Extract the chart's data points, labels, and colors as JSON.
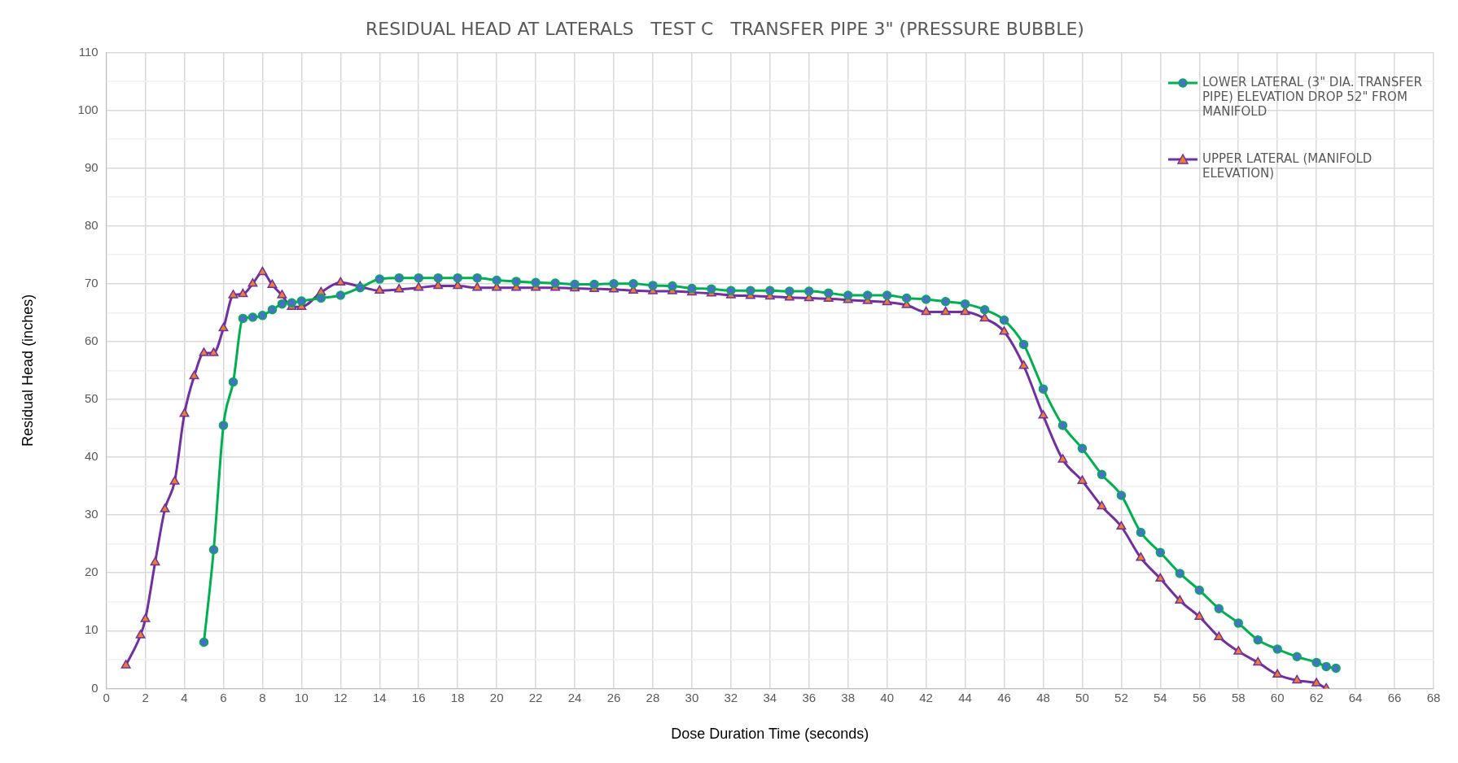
{
  "chart_data": {
    "type": "line",
    "title": "RESIDUAL HEAD AT LATERALS   TEST C   TRANSFER PIPE 3\" (PRESSURE BUBBLE)",
    "xlabel": "Dose Duration Time (seconds)",
    "ylabel": "Residual Head (inches)",
    "xlim": [
      0,
      68
    ],
    "xticks": [
      0,
      2,
      4,
      6,
      8,
      10,
      12,
      14,
      16,
      18,
      20,
      22,
      24,
      26,
      28,
      30,
      32,
      34,
      36,
      38,
      40,
      42,
      44,
      46,
      48,
      50,
      52,
      54,
      56,
      58,
      60,
      62,
      64,
      66,
      68
    ],
    "ylim": [
      0,
      110
    ],
    "yticks": [
      0,
      {
        "value": 5,
        "label": null
      },
      10,
      {
        "value": 15,
        "label": null
      },
      20,
      {
        "value": 25,
        "label": null
      },
      30,
      {
        "value": 35,
        "label": null
      },
      40,
      {
        "value": 45,
        "label": null
      },
      50,
      {
        "value": 55,
        "label": null
      },
      60,
      {
        "value": 65,
        "label": null
      },
      70,
      {
        "value": 75,
        "label": null
      },
      80,
      {
        "value": 85,
        "label": null
      },
      90,
      {
        "value": 95,
        "label": null
      },
      100,
      {
        "value": 105,
        "label": null
      },
      110
    ],
    "grid": true,
    "legend": "top right",
    "series": [
      {
        "name": "LOWER LATERAL (3\" DIA. TRANSFER PIPE) ELEVATION DROP 52\" FROM MANIFOLD",
        "color": "#00b050",
        "marker": "circle",
        "x": [
          5,
          5.5,
          6,
          6.5,
          7,
          7.5,
          8,
          8.5,
          9,
          9.5,
          10,
          11,
          12,
          13,
          14,
          15,
          16,
          17,
          18,
          19,
          20,
          21,
          22,
          23,
          24,
          25,
          26,
          27,
          28,
          29,
          30,
          31,
          32,
          33,
          34,
          35,
          36,
          37,
          38,
          39,
          40,
          41,
          42,
          43,
          44,
          45,
          46,
          47,
          48,
          49,
          50,
          51,
          52,
          53,
          54,
          55,
          56,
          57,
          58,
          59,
          60,
          61,
          62,
          62.5,
          63
        ],
        "values": [
          8,
          24,
          45.5,
          53,
          64,
          64.2,
          64.5,
          65.5,
          66.5,
          66.7,
          67,
          67.5,
          68,
          69.3,
          70.8,
          71,
          71,
          71,
          71,
          71,
          70.6,
          70.4,
          70.2,
          70.1,
          69.9,
          69.9,
          70,
          70,
          69.7,
          69.6,
          69.2,
          69.1,
          68.8,
          68.8,
          68.8,
          68.7,
          68.7,
          68.4,
          68,
          68,
          68,
          67.5,
          67.3,
          66.9,
          66.5,
          65.5,
          63.7,
          59.5,
          51.8,
          45.5,
          41.5,
          37,
          33.4,
          27,
          23.5,
          19.9,
          17,
          13.8,
          11.3,
          8.4,
          6.8,
          5.5,
          4.5,
          3.8,
          3.5
        ]
      },
      {
        "name": "UPPER LATERAL (MANIFOLD ELEVATION)",
        "color": "#7030a0",
        "marker": "triangle",
        "x": [
          1,
          1.75,
          2,
          2.5,
          3,
          3.5,
          4,
          4.5,
          5,
          5.5,
          6,
          6.5,
          7,
          7.5,
          8,
          8.5,
          9,
          9.5,
          10,
          11,
          12,
          13,
          14,
          15,
          16,
          17,
          18,
          19,
          20,
          21,
          22,
          23,
          24,
          25,
          26,
          27,
          28,
          29,
          30,
          31,
          32,
          33,
          34,
          35,
          36,
          37,
          38,
          39,
          40,
          41,
          42,
          43,
          44,
          45,
          46,
          47,
          48,
          49,
          50,
          51,
          52,
          53,
          54,
          55,
          56,
          57,
          58,
          59,
          60,
          61,
          62,
          62.5
        ],
        "values": [
          4,
          9.2,
          12,
          21.8,
          31,
          35.8,
          47.5,
          54,
          58,
          58,
          62.3,
          68,
          68.2,
          70,
          72,
          69.8,
          68,
          66,
          66,
          68.5,
          70.2,
          69.5,
          68.8,
          69,
          69.3,
          69.6,
          69.6,
          69.3,
          69.3,
          69.3,
          69.3,
          69.3,
          69.2,
          69.1,
          69,
          68.8,
          68.7,
          68.7,
          68.5,
          68.3,
          68,
          67.9,
          67.8,
          67.6,
          67.5,
          67.4,
          67.2,
          67,
          66.8,
          66.3,
          65.1,
          65.1,
          65.1,
          64,
          61.7,
          55.8,
          47.2,
          39.6,
          35.9,
          31.5,
          28,
          22.6,
          19,
          15.2,
          12.4,
          8.9,
          6.4,
          4.5,
          2.4,
          1.4,
          0.9,
          0
        ]
      }
    ]
  }
}
